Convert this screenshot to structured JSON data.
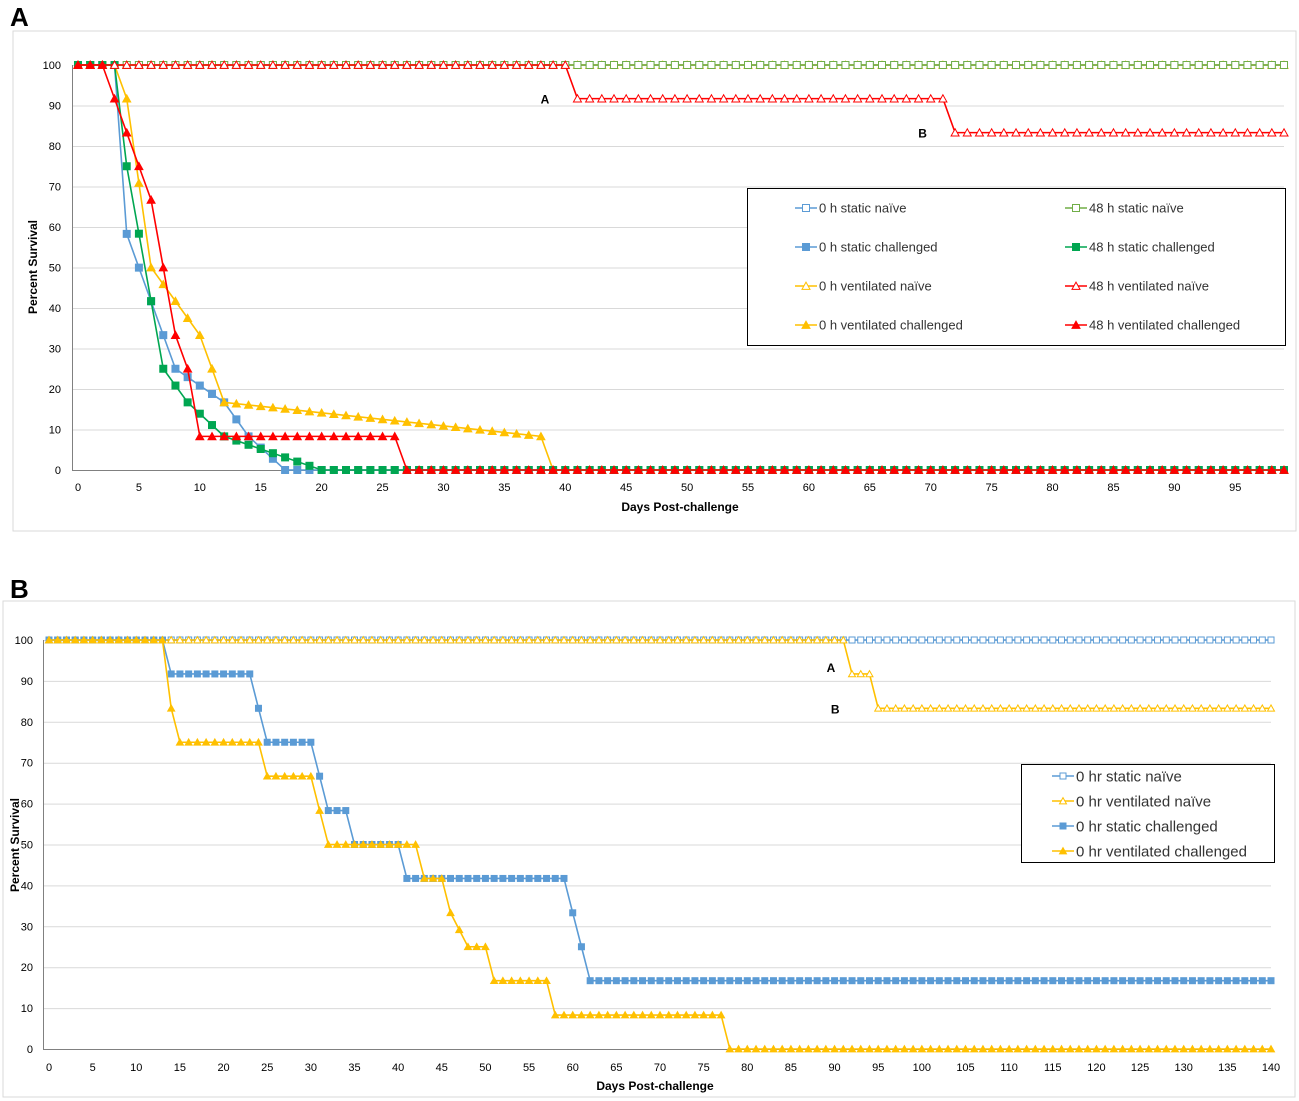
{
  "panels": [
    {
      "letter": "A",
      "chart_data": {
        "type": "line",
        "title": "",
        "xlabel": "Days Post-challenge",
        "ylabel": "Percent Survival",
        "xlim": [
          0,
          99
        ],
        "ylim": [
          0,
          100
        ],
        "xticks": [
          0,
          5,
          10,
          15,
          20,
          25,
          30,
          35,
          40,
          45,
          50,
          55,
          60,
          65,
          70,
          75,
          80,
          85,
          90,
          95
        ],
        "yticks": [
          0,
          10,
          20,
          30,
          40,
          50,
          60,
          70,
          80,
          90,
          100
        ],
        "grid": "horizontal",
        "legend_position": "right",
        "series": [
          {
            "name": "0 h static naïve",
            "color": "#5b9bd5",
            "marker": "square-open",
            "steps": [
              [
                0,
                100
              ],
              [
                99,
                100
              ]
            ]
          },
          {
            "name": "0 h static challenged",
            "color": "#5b9bd5",
            "marker": "square-filled",
            "steps": [
              [
                0,
                100
              ],
              [
                3,
                100
              ],
              [
                4,
                58.3
              ],
              [
                7,
                33.3
              ],
              [
                8,
                25
              ],
              [
                12,
                16.7
              ],
              [
                14,
                8.3
              ],
              [
                17,
                0
              ],
              [
                99,
                0
              ]
            ]
          },
          {
            "name": "0 h ventilated naïve",
            "color": "#ffc000",
            "marker": "triangle-open",
            "steps": [
              [
                0,
                100
              ],
              [
                99,
                100
              ]
            ]
          },
          {
            "name": "0 h ventilated challenged",
            "color": "#ffc000",
            "marker": "triangle-filled",
            "steps": [
              [
                0,
                100
              ],
              [
                3,
                100
              ],
              [
                4,
                91.7
              ],
              [
                6,
                50
              ],
              [
                8,
                41.7
              ],
              [
                10,
                33.3
              ],
              [
                12,
                16.7
              ],
              [
                38,
                8.3
              ],
              [
                39,
                0
              ],
              [
                99,
                0
              ]
            ]
          },
          {
            "name": "48 h static naïve",
            "color": "#70ad47",
            "marker": "square-open",
            "steps": [
              [
                0,
                100
              ],
              [
                99,
                100
              ]
            ]
          },
          {
            "name": "48 h static challenged",
            "color": "#00a651",
            "marker": "square-filled",
            "steps": [
              [
                0,
                100
              ],
              [
                3,
                100
              ],
              [
                4,
                75
              ],
              [
                6,
                41.7
              ],
              [
                7,
                25
              ],
              [
                9,
                16.7
              ],
              [
                12,
                8.3
              ],
              [
                20,
                0
              ],
              [
                99,
                0
              ]
            ]
          },
          {
            "name": "48 h ventilated naïve",
            "color": "#ff0000",
            "marker": "triangle-open",
            "steps": [
              [
                0,
                100
              ],
              [
                40,
                100
              ],
              [
                41,
                91.7
              ],
              [
                71,
                91.7
              ],
              [
                72,
                83.3
              ],
              [
                99,
                83.3
              ]
            ]
          },
          {
            "name": "48 h ventilated challenged",
            "color": "#ff0000",
            "marker": "triangle-filled",
            "steps": [
              [
                0,
                100
              ],
              [
                2,
                100
              ],
              [
                3,
                91.7
              ],
              [
                4,
                83.3
              ],
              [
                5,
                75
              ],
              [
                6,
                66.7
              ],
              [
                7,
                50
              ],
              [
                8,
                33.3
              ],
              [
                9,
                25
              ],
              [
                10,
                8.3
              ],
              [
                26,
                8.3
              ],
              [
                27,
                0
              ],
              [
                99,
                0
              ]
            ]
          }
        ],
        "annotations": [
          {
            "text": "A",
            "x": 40,
            "y": 91.7
          },
          {
            "text": "B",
            "x": 71,
            "y": 83.3
          }
        ]
      }
    },
    {
      "letter": "B",
      "chart_data": {
        "type": "line",
        "title": "",
        "xlabel": "Days Post-challenge",
        "ylabel": "Percent Survival",
        "xlim": [
          0,
          140
        ],
        "ylim": [
          0,
          100
        ],
        "xticks": [
          0,
          5,
          10,
          15,
          20,
          25,
          30,
          35,
          40,
          45,
          50,
          55,
          60,
          65,
          70,
          75,
          80,
          85,
          90,
          95,
          100,
          105,
          110,
          115,
          120,
          125,
          130,
          135,
          140
        ],
        "yticks": [
          0,
          10,
          20,
          30,
          40,
          50,
          60,
          70,
          80,
          90,
          100
        ],
        "grid": "horizontal",
        "legend_position": "right",
        "series": [
          {
            "name": "0 hr static naïve",
            "color": "#5b9bd5",
            "marker": "square-open",
            "steps": [
              [
                0,
                100
              ],
              [
                140,
                100
              ]
            ]
          },
          {
            "name": "0 hr ventilated naïve",
            "color": "#ffc000",
            "marker": "triangle-open",
            "steps": [
              [
                0,
                100
              ],
              [
                91,
                100
              ],
              [
                92,
                91.7
              ],
              [
                94,
                91.7
              ],
              [
                95,
                83.3
              ],
              [
                140,
                83.3
              ]
            ]
          },
          {
            "name": "0 hr static challenged",
            "color": "#5b9bd5",
            "marker": "square-filled",
            "steps": [
              [
                0,
                100
              ],
              [
                13,
                100
              ],
              [
                14,
                91.7
              ],
              [
                23,
                91.7
              ],
              [
                24,
                83.3
              ],
              [
                25,
                75
              ],
              [
                30,
                75
              ],
              [
                31,
                66.7
              ],
              [
                32,
                58.3
              ],
              [
                34,
                58.3
              ],
              [
                35,
                50
              ],
              [
                40,
                50
              ],
              [
                41,
                41.7
              ],
              [
                59,
                41.7
              ],
              [
                60,
                33.3
              ],
              [
                61,
                25
              ],
              [
                62,
                16.7
              ],
              [
                140,
                16.7
              ]
            ]
          },
          {
            "name": "0 hr ventilated challenged",
            "color": "#ffc000",
            "marker": "triangle-filled",
            "steps": [
              [
                0,
                100
              ],
              [
                13,
                100
              ],
              [
                14,
                83.3
              ],
              [
                15,
                75
              ],
              [
                24,
                75
              ],
              [
                25,
                66.7
              ],
              [
                30,
                66.7
              ],
              [
                31,
                58.3
              ],
              [
                32,
                50
              ],
              [
                42,
                50
              ],
              [
                43,
                41.7
              ],
              [
                45,
                41.7
              ],
              [
                46,
                33.3
              ],
              [
                48,
                25
              ],
              [
                50,
                25
              ],
              [
                51,
                16.7
              ],
              [
                57,
                16.7
              ],
              [
                58,
                8.3
              ],
              [
                77,
                8.3
              ],
              [
                78,
                0
              ],
              [
                140,
                0
              ]
            ]
          }
        ],
        "annotations": [
          {
            "text": "A",
            "x": 91,
            "y": 91.7
          },
          {
            "text": "B",
            "x": 94,
            "y": 83.3
          }
        ]
      }
    }
  ]
}
